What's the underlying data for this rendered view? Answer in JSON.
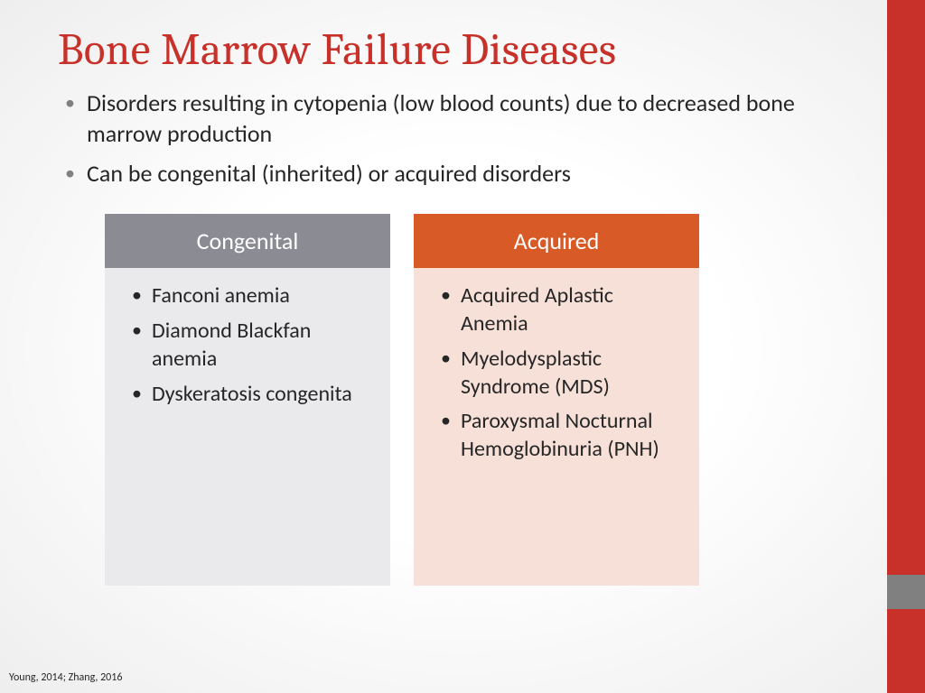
{
  "title": "Bone Marrow Failure Diseases",
  "title_color": "#c8302a",
  "accent_bar_color": "#c8302a",
  "gray_tab_color": "#808080",
  "bullets": [
    "Disorders resulting in cytopenia (low blood counts) due to decreased bone marrow production",
    "Can be congenital (inherited) or acquired disorders"
  ],
  "panels": [
    {
      "header": "Congenital",
      "header_bg": "#8b8b93",
      "body_bg": "#eaeaed",
      "items": [
        "Fanconi anemia",
        "Diamond Blackfan anemia",
        "Dyskeratosis congenita"
      ]
    },
    {
      "header": "Acquired",
      "header_bg": "#d85b27",
      "body_bg": "#f6e0d8",
      "items": [
        "Acquired Aplastic Anemia",
        "Myelodysplastic Syndrome (MDS)",
        "Paroxysmal Nocturnal Hemoglobinuria (PNH)"
      ]
    }
  ],
  "citation": "Young, 2014; Zhang, 2016"
}
